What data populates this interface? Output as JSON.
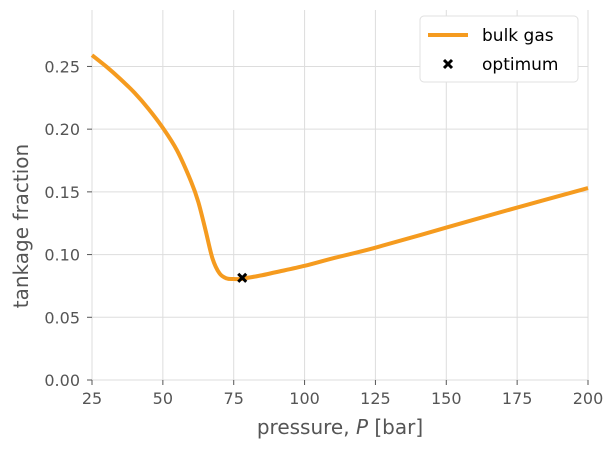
{
  "chart_data": {
    "type": "line",
    "xlabel_prefix": "pressure, ",
    "xlabel_var": "P",
    "xlabel_suffix": " [bar]",
    "ylabel": "tankage fraction",
    "xlim": [
      25,
      200
    ],
    "ylim": [
      0.0,
      0.295
    ],
    "grid": true,
    "legend_position": "top-right",
    "x_ticks": [
      25,
      50,
      75,
      100,
      125,
      150,
      175,
      200
    ],
    "x_tick_labels": [
      "25",
      "50",
      "75",
      "100",
      "125",
      "150",
      "175",
      "200"
    ],
    "y_ticks": [
      0.0,
      0.05,
      0.1,
      0.15,
      0.2,
      0.25
    ],
    "y_tick_labels": [
      "0.00",
      "0.05",
      "0.10",
      "0.15",
      "0.20",
      "0.25"
    ],
    "series": [
      {
        "name": "bulk gas",
        "color": "#f59b1f",
        "x": [
          25,
          30,
          35,
          40,
          45,
          50,
          55,
          60,
          62.5,
          65,
          67.5,
          70,
          72.5,
          75,
          77.5,
          80,
          85,
          90,
          100,
          110,
          125,
          150,
          175,
          200
        ],
        "y": [
          0.259,
          0.25,
          0.24,
          0.229,
          0.216,
          0.201,
          0.183,
          0.158,
          0.142,
          0.12,
          0.097,
          0.085,
          0.081,
          0.0805,
          0.0805,
          0.0815,
          0.0835,
          0.086,
          0.091,
          0.097,
          0.1055,
          0.1215,
          0.1375,
          0.153
        ]
      }
    ],
    "markers": [
      {
        "name": "optimum",
        "symbol": "x",
        "color": "#000000",
        "x": 78,
        "y": 0.0815
      }
    ]
  }
}
